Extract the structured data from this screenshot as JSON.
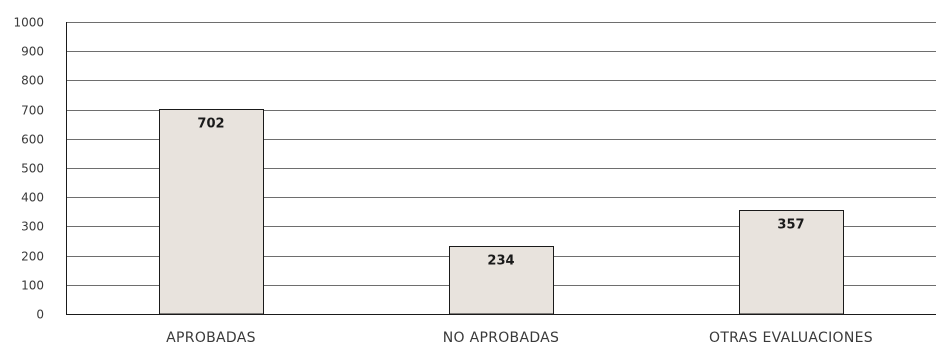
{
  "chart_data": {
    "type": "bar",
    "title": "",
    "xlabel": "",
    "ylabel": "",
    "categories": [
      "APROBADAS",
      "NO  APROBADAS",
      "OTRAS EVALUACIONES"
    ],
    "values": [
      702,
      234,
      357
    ],
    "data_labels": [
      "702",
      "234",
      "357"
    ],
    "ylim": [
      0,
      1000
    ],
    "yticks": [
      0,
      100,
      200,
      300,
      400,
      500,
      600,
      700,
      800,
      900,
      1000
    ],
    "grid": true,
    "legend": "none",
    "colors": {
      "bar_fill": "#e8e3dd",
      "bar_stroke": "#1a1a1a",
      "grid": "#6e6e6e",
      "text": "#3a3a3a"
    }
  }
}
